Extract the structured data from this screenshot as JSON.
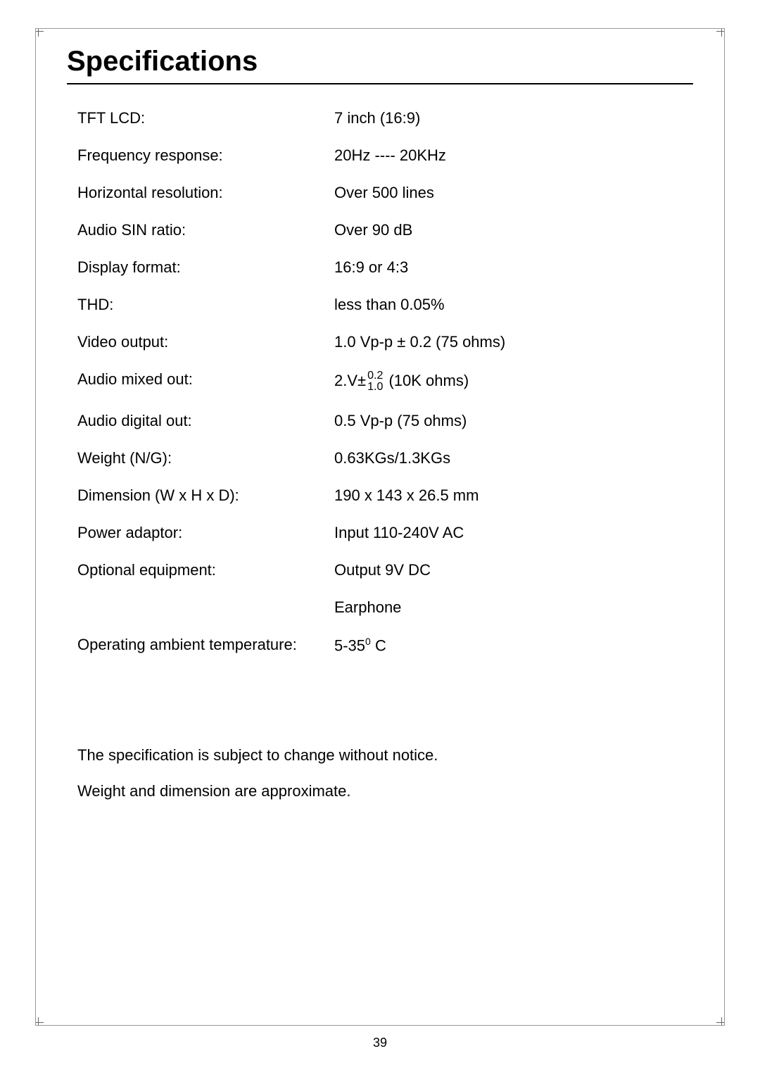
{
  "title": "Specifications",
  "specs": [
    {
      "label": "TFT LCD:",
      "value": "7 inch (16:9)"
    },
    {
      "label": "Frequency response:",
      "value": "20Hz ---- 20KHz"
    },
    {
      "label": "Horizontal resolution:",
      "value": "Over 500 lines"
    },
    {
      "label": "Audio SIN ratio:",
      "value": "Over 90 dB"
    },
    {
      "label": "Display format:",
      "value": "16:9 or 4:3"
    },
    {
      "label": "THD:",
      "value": "less than 0.05%"
    },
    {
      "label": "Video output:",
      "value": "1.0 Vp-p ± 0.2 (75 ohms)"
    },
    {
      "label": "Audio mixed out:",
      "value_prefix": "2.V±",
      "frac_top": "0.2",
      "frac_bot": "1.0",
      "value_suffix": " (10K ohms)",
      "has_fraction": true
    },
    {
      "label": "Audio digital out:",
      "value": "0.5 Vp-p (75 ohms)"
    },
    {
      "label": "Weight (N/G):",
      "value": "0.63KGs/1.3KGs"
    },
    {
      "label": "Dimension (W x H x D):",
      "value": "190 x 143 x 26.5 mm"
    },
    {
      "label": "Power adaptor:",
      "value": "Input 110-240V AC"
    },
    {
      "label": "Optional equipment:",
      "value": "Output 9V DC"
    },
    {
      "label": "",
      "value": "Earphone"
    },
    {
      "label": "Operating ambient temperature:",
      "value_prefix": "5-35",
      "superscript": "0",
      "value_suffix": " C",
      "has_superscript": true
    }
  ],
  "notes": [
    "The specification is subject to change without notice.",
    "Weight and dimension are approximate."
  ],
  "page_number": "39",
  "colors": {
    "text": "#000000",
    "border": "#999999",
    "background": "#ffffff"
  },
  "typography": {
    "title_fontsize": 40,
    "body_fontsize": 22,
    "font_family": "Arial, Helvetica, sans-serif"
  }
}
